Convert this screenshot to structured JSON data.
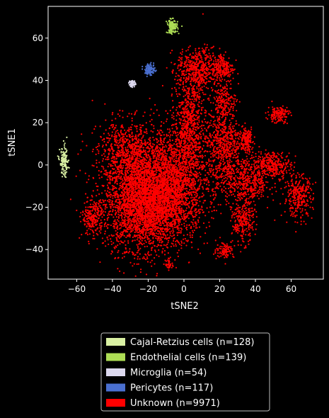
{
  "chart_data": {
    "type": "scatter",
    "xlabel": "tSNE2",
    "ylabel": "tSNE1",
    "xlim": [
      -76,
      78
    ],
    "ylim": [
      -54,
      75
    ],
    "x_ticks": [
      -60,
      -40,
      -20,
      0,
      20,
      40,
      60
    ],
    "y_ticks": [
      -40,
      -20,
      0,
      20,
      40,
      60
    ],
    "x_tick_labels": [
      "−60",
      "−40",
      "−20",
      "0",
      "20",
      "40",
      "60"
    ],
    "y_tick_labels": [
      "−40",
      "−20",
      "0",
      "20",
      "40",
      "60"
    ],
    "grid": false,
    "legend_position": "below",
    "background": "#000000",
    "series": [
      {
        "name": "Cajal-Retzius cells (n=128)",
        "color": "#d9f0a3",
        "clusters": [
          {
            "x": -67,
            "y": 1.5,
            "sx": 1.2,
            "sy": 3.5,
            "n": 128
          }
        ]
      },
      {
        "name": "Endothelial cells (n=139)",
        "color": "#addd55",
        "clusters": [
          {
            "x": -6.5,
            "y": 65.5,
            "sx": 1.5,
            "sy": 1.6,
            "n": 139
          }
        ]
      },
      {
        "name": "Microglia (n=54)",
        "color": "#dcd8ee",
        "clusters": [
          {
            "x": -29,
            "y": 38.5,
            "sx": 0.9,
            "sy": 0.8,
            "n": 54
          }
        ]
      },
      {
        "name": "Pericytes (n=117)",
        "color": "#4a6fcf",
        "clusters": [
          {
            "x": -19,
            "y": 45,
            "sx": 1.4,
            "sy": 1.3,
            "n": 117
          }
        ]
      },
      {
        "name": "Unknown (n=9971)",
        "color": "#ff0000",
        "clusters": [
          {
            "x": -22,
            "y": -18,
            "sx": 11,
            "sy": 11,
            "n": 3200
          },
          {
            "x": -5,
            "y": -8,
            "sx": 9,
            "sy": 12,
            "n": 1600
          },
          {
            "x": -30,
            "y": 5,
            "sx": 9,
            "sy": 8,
            "n": 900
          },
          {
            "x": 3,
            "y": 20,
            "sx": 4,
            "sy": 12,
            "n": 700
          },
          {
            "x": 8,
            "y": 45,
            "sx": 6,
            "sy": 5,
            "n": 500
          },
          {
            "x": 22,
            "y": 46,
            "sx": 3,
            "sy": 3.5,
            "n": 200
          },
          {
            "x": 22,
            "y": 30,
            "sx": 3.5,
            "sy": 4,
            "n": 200
          },
          {
            "x": 22,
            "y": 12,
            "sx": 5,
            "sy": 6,
            "n": 450
          },
          {
            "x": 25,
            "y": -5,
            "sx": 6,
            "sy": 7,
            "n": 350
          },
          {
            "x": 35,
            "y": 12,
            "sx": 2,
            "sy": 3,
            "n": 150
          },
          {
            "x": 38,
            "y": -8,
            "sx": 5,
            "sy": 6,
            "n": 350
          },
          {
            "x": 33,
            "y": -27,
            "sx": 3,
            "sy": 5,
            "n": 250
          },
          {
            "x": 50,
            "y": 0,
            "sx": 5,
            "sy": 3,
            "n": 300
          },
          {
            "x": 53,
            "y": 24,
            "sx": 3,
            "sy": 2,
            "n": 150
          },
          {
            "x": 64,
            "y": -15,
            "sx": 4,
            "sy": 5,
            "n": 300
          },
          {
            "x": 23,
            "y": -40,
            "sx": 2.5,
            "sy": 2,
            "n": 100
          },
          {
            "x": -8,
            "y": -47,
            "sx": 1.2,
            "sy": 1.2,
            "n": 40
          },
          {
            "x": -51,
            "y": -25,
            "sx": 3,
            "sy": 4,
            "n": 231
          }
        ]
      }
    ]
  }
}
